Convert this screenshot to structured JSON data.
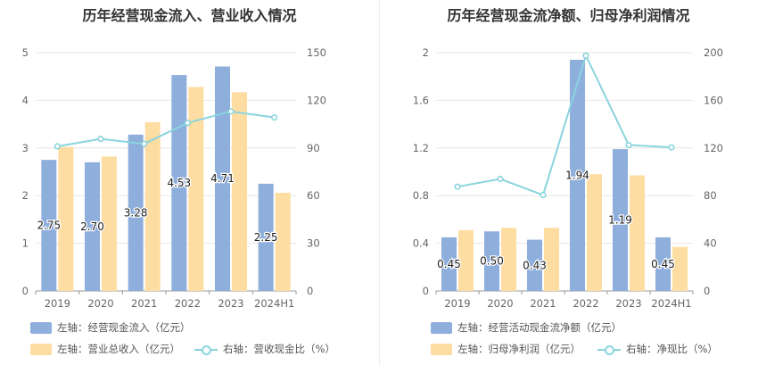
{
  "colors": {
    "bar1": "#8eaedc",
    "bar2": "#fedda2",
    "line": "#8ad4de",
    "grid": "#e6e6e6",
    "axis": "#666666"
  },
  "charts": [
    {
      "title": "历年经营现金流入、营业收入情况",
      "legend": {
        "bar1": "左轴：经营现金流入（亿元）",
        "bar2": "左轴：营业总收入（亿元）",
        "line": "右轴：营收现金比（%）"
      }
    },
    {
      "title": "历年经营现金流净额、归母净利润情况",
      "legend": {
        "bar1": "左轴：经营活动现金流净额（亿元）",
        "bar2": "左轴：归母净利润（亿元）",
        "line": "右轴：净现比（%）"
      }
    }
  ],
  "chart_data": [
    {
      "type": "bar",
      "title": "历年经营现金流入、营业收入情况",
      "categories": [
        "2019",
        "2020",
        "2021",
        "2022",
        "2023",
        "2024H1"
      ],
      "left_axis": {
        "ylim": [
          0,
          5
        ],
        "ticks": [
          0,
          1,
          2,
          3,
          4,
          5
        ],
        "tick_labels": [
          "0",
          "1",
          "2",
          "3",
          "4",
          "5"
        ]
      },
      "right_axis": {
        "ylim": [
          0,
          150
        ],
        "ticks": [
          0,
          30,
          60,
          90,
          120,
          150
        ],
        "tick_labels": [
          "0",
          "30",
          "60",
          "90",
          "120",
          "150"
        ]
      },
      "series": [
        {
          "name": "左轴：经营现金流入（亿元）",
          "type": "bar",
          "axis": "left",
          "values": [
            2.75,
            2.7,
            3.28,
            4.53,
            4.71,
            2.25
          ],
          "labels": [
            "2.75",
            "2.70",
            "3.28",
            "4.53",
            "4.71",
            "2.25"
          ]
        },
        {
          "name": "左轴：营业总收入（亿元）",
          "type": "bar",
          "axis": "left",
          "values": [
            3.02,
            2.82,
            3.54,
            4.28,
            4.17,
            2.06
          ]
        },
        {
          "name": "右轴：营收现金比（%）",
          "type": "line",
          "axis": "right",
          "values": [
            91,
            95.7,
            92.6,
            105.8,
            113,
            109.2
          ]
        }
      ],
      "grid": true,
      "legend_position": "bottom-left"
    },
    {
      "type": "bar",
      "title": "历年经营现金流净额、归母净利润情况",
      "categories": [
        "2019",
        "2020",
        "2021",
        "2022",
        "2023",
        "2024H1"
      ],
      "left_axis": {
        "ylim": [
          0,
          2
        ],
        "ticks": [
          0,
          0.4,
          0.8,
          1.2,
          1.6,
          2
        ],
        "tick_labels": [
          "0",
          "0.4",
          "0.8",
          "1.2",
          "1.6",
          "2"
        ]
      },
      "right_axis": {
        "ylim": [
          0,
          200
        ],
        "ticks": [
          0,
          40,
          80,
          120,
          160,
          200
        ],
        "tick_labels": [
          "0",
          "40",
          "80",
          "120",
          "160",
          "200"
        ]
      },
      "series": [
        {
          "name": "左轴：经营活动现金流净额（亿元）",
          "type": "bar",
          "axis": "left",
          "values": [
            0.45,
            0.5,
            0.43,
            1.94,
            1.19,
            0.45
          ],
          "labels": [
            "0.45",
            "0.50",
            "0.43",
            "1.94",
            "1.19",
            "0.45"
          ]
        },
        {
          "name": "左轴：归母净利润（亿元）",
          "type": "bar",
          "axis": "left",
          "values": [
            0.51,
            0.53,
            0.53,
            0.98,
            0.97,
            0.37
          ]
        },
        {
          "name": "右轴：净现比（%）",
          "type": "line",
          "axis": "right",
          "values": [
            87.5,
            94,
            80.5,
            197.5,
            122.5,
            120.5
          ]
        }
      ],
      "grid": true,
      "legend_position": "bottom-left"
    }
  ]
}
